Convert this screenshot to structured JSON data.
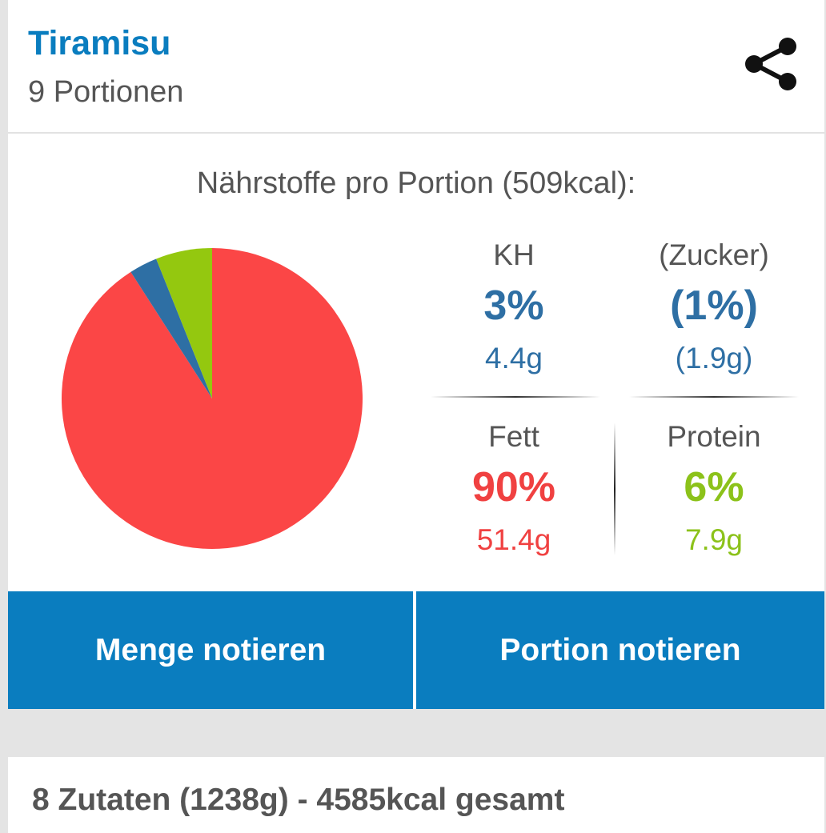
{
  "recipe": {
    "title": "Tiramisu",
    "portions": "9 Portionen"
  },
  "header": {
    "share_icon": "share-icon"
  },
  "nutrients": {
    "title": "Nährstoffe pro Portion (509kcal):",
    "kh": {
      "label": "KH",
      "percent": "3%",
      "grams": "4.4g"
    },
    "zucker": {
      "label": "(Zucker)",
      "percent": "(1%)",
      "grams": "(1.9g)"
    },
    "fett": {
      "label": "Fett",
      "percent": "90%",
      "grams": "51.4g"
    },
    "protein": {
      "label": "Protein",
      "percent": "6%",
      "grams": "7.9g"
    }
  },
  "chart_data": {
    "type": "pie",
    "categories": [
      "KH",
      "Fett",
      "Protein"
    ],
    "values": [
      3,
      90,
      6
    ],
    "colors": [
      "#2e6fa4",
      "#fb4646",
      "#94c80f"
    ]
  },
  "colors": {
    "accent": "#0a7dbf",
    "kh": "#2e6fa4",
    "fett": "#f04141",
    "protein": "#8cc21a"
  },
  "actions": {
    "menge": "Menge notieren",
    "portion": "Portion notieren"
  },
  "ingredients": {
    "summary": "8 Zutaten (1238g) - 4585kcal gesamt"
  }
}
